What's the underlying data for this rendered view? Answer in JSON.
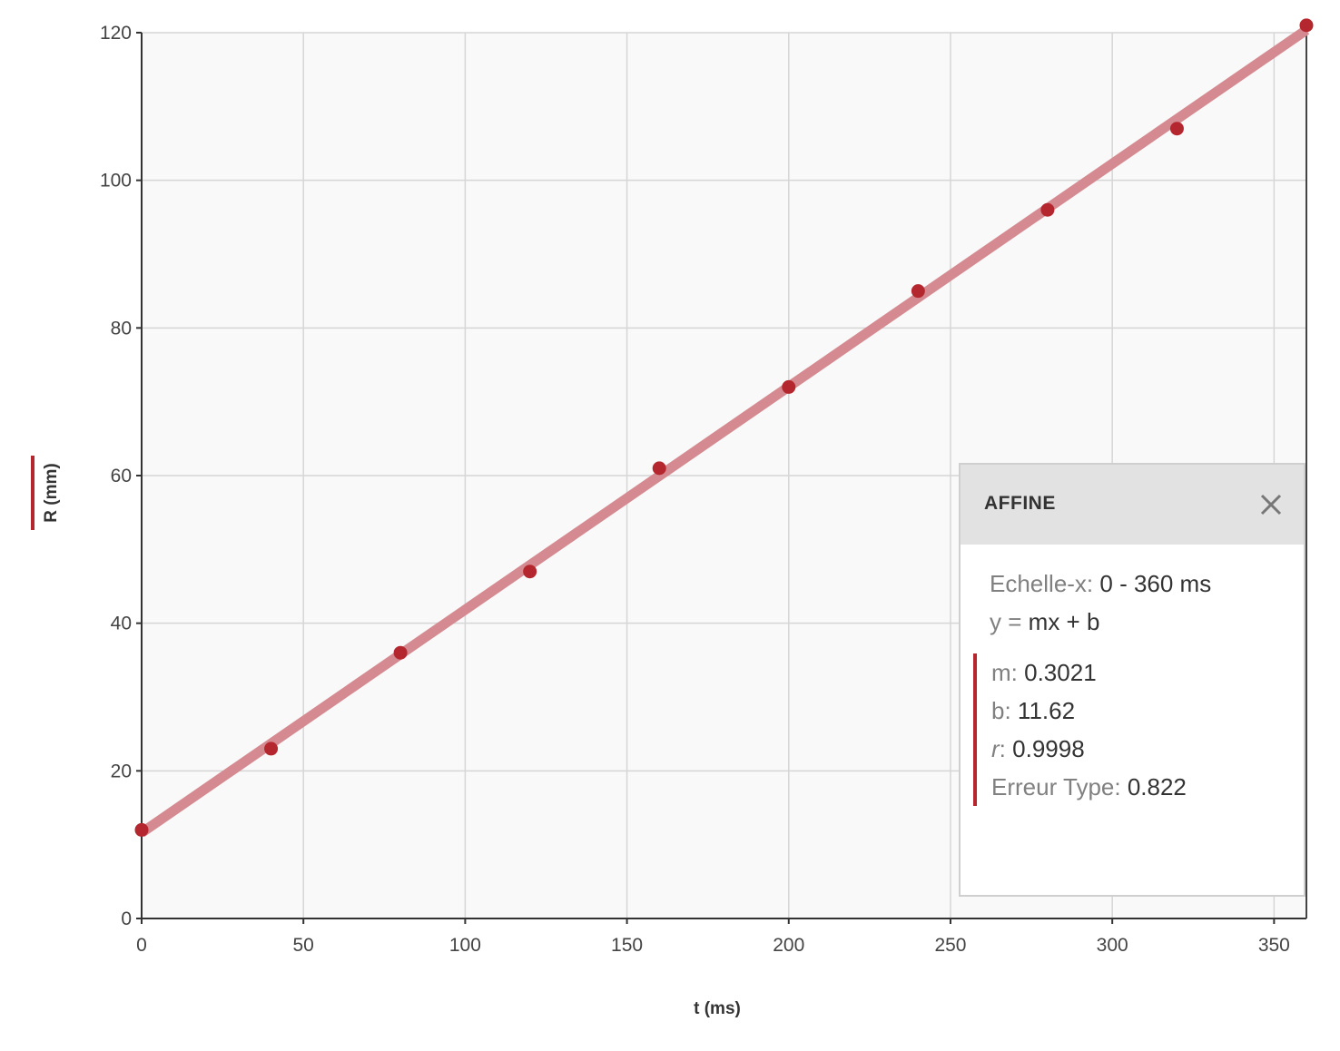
{
  "chart_data": {
    "type": "scatter",
    "xlabel": "t (ms)",
    "ylabel": "R (mm)",
    "xlim": [
      0,
      360
    ],
    "ylim": [
      0,
      120
    ],
    "xticks": [
      0,
      50,
      100,
      150,
      200,
      250,
      300,
      350
    ],
    "yticks": [
      0,
      20,
      40,
      60,
      80,
      100,
      120
    ],
    "grid": true,
    "series": [
      {
        "x": [
          0,
          40,
          80,
          120,
          160,
          200,
          240,
          280,
          320,
          360
        ],
        "y": [
          12,
          23,
          36,
          47,
          61,
          72,
          85,
          96,
          107,
          121
        ]
      }
    ],
    "fit_line": {
      "m": 0.3021,
      "b": 11.62,
      "x_range": [
        0,
        360
      ]
    },
    "colors": {
      "point": "#b5272f",
      "line": "#d48a90",
      "accent": "#b5272f"
    }
  },
  "fit_panel": {
    "title": "AFFINE",
    "scale_label": "Echelle-x:",
    "scale_value": "0 - 360 ms",
    "equation_label": "y =",
    "equation_value": "mx + b",
    "m_label": "m:",
    "m_value": "0.3021",
    "b_label": "b:",
    "b_value": "11.62",
    "r_label": "r",
    "r_value": "0.9998",
    "se_label": "Erreur Type:",
    "se_value": "0.822",
    "close_icon": "close-icon"
  }
}
